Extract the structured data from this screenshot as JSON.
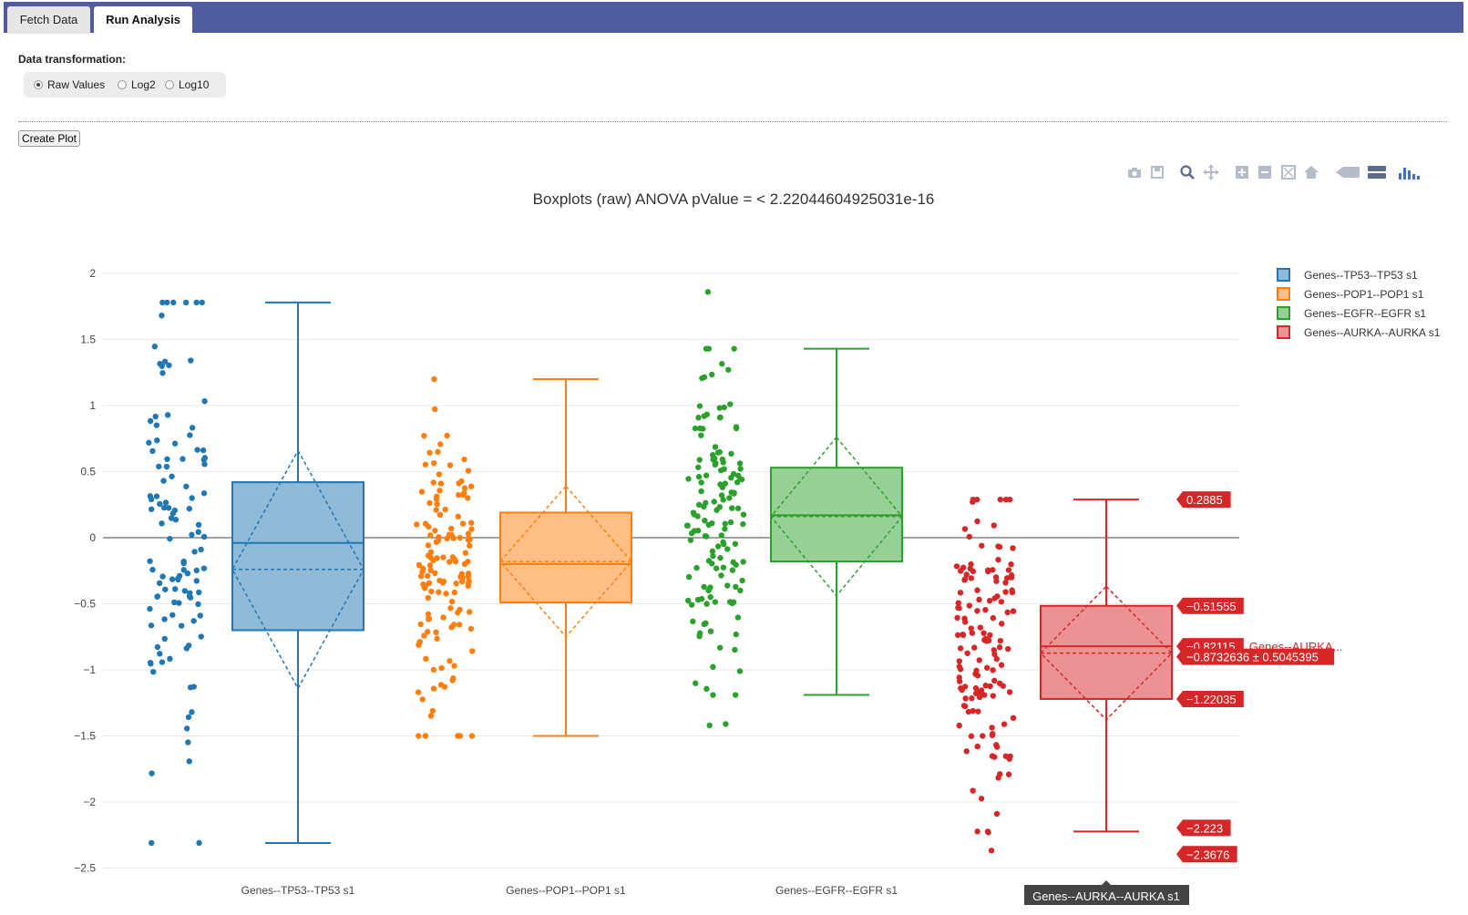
{
  "tabs": [
    {
      "label": "Fetch Data",
      "active": false
    },
    {
      "label": "Run Analysis",
      "active": true
    }
  ],
  "transform": {
    "label": "Data transformation:",
    "options": [
      "Raw Values",
      "Log2",
      "Log10"
    ],
    "selected": "Raw Values"
  },
  "create_plot_label": "Create Plot",
  "modebar_icons": [
    "camera-icon",
    "save-icon",
    "zoom-icon",
    "pan-icon",
    "zoom-in-icon",
    "zoom-out-icon",
    "autoscale-icon",
    "home-icon",
    "spike-lines-icon",
    "hover-compare-icon",
    "plotly-logo-icon"
  ],
  "chart_data": {
    "type": "box",
    "title": "Boxplots (raw) ANOVA pValue = < 2.22044604925031e-16",
    "ylim": [
      -2.5,
      2
    ],
    "yticks": [
      "2",
      "1.5",
      "1",
      "0.5",
      "0",
      "−0.5",
      "−1",
      "−1.5",
      "−2",
      "−2.5"
    ],
    "grid": true,
    "legend_position": "top-right",
    "categories": [
      "Genes--TP53--TP53 s1",
      "Genes--POP1--POP1 s1",
      "Genes--EGFR--EGFR s1",
      "Genes--AURKA--AURKA s1"
    ],
    "series": [
      {
        "name": "Genes--TP53--TP53 s1",
        "color": "#1f77b4",
        "fill": "#8fbbd9",
        "min": -2.31,
        "q1": -0.7,
        "median": -0.04,
        "q3": 0.42,
        "max": 1.78,
        "mean": -0.24,
        "sd": 0.9,
        "npoints": 115,
        "outliers": []
      },
      {
        "name": "Genes--POP1--POP1 s1",
        "color": "#ff7f0e",
        "fill": "#ffbf87",
        "min": -1.5,
        "q1": -0.49,
        "median": -0.2,
        "q3": 0.19,
        "max": 1.2,
        "mean": -0.18,
        "sd": 0.57,
        "npoints": 140,
        "outliers": []
      },
      {
        "name": "Genes--EGFR--EGFR s1",
        "color": "#2ca02c",
        "fill": "#96d096",
        "min": -1.19,
        "q1": -0.18,
        "median": 0.17,
        "q3": 0.53,
        "max": 1.43,
        "mean": 0.16,
        "sd": 0.6,
        "npoints": 140,
        "outliers": [
          1.86,
          -1.41,
          -1.42
        ]
      },
      {
        "name": "Genes--AURKA--AURKA s1",
        "color": "#d62728",
        "fill": "#eb9394",
        "min": -2.223,
        "q1": -1.22035,
        "median": -0.82115,
        "q3": -0.51555,
        "max": 0.2885,
        "mean": -0.8732636,
        "sd": 0.5045395,
        "npoints": 140,
        "outliers": [
          -2.09,
          -2.23,
          -2.3676
        ]
      }
    ],
    "hover": {
      "category_label": "Genes--AURKA--AURKA s1",
      "series_label": "Genes--AURKA...",
      "values": [
        "0.2885",
        "−0.51555",
        "−0.82115",
        "−0.8732636 ± 0.5045395",
        "−1.22035",
        "−2.223",
        "−2.3676"
      ]
    }
  }
}
